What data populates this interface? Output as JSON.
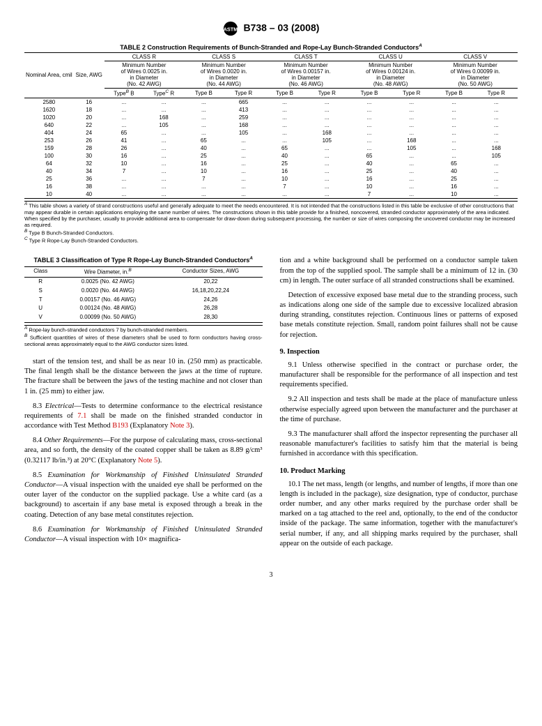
{
  "header": {
    "designation": "B738 – 03 (2008)"
  },
  "table2": {
    "title": "TABLE 2 Construction Requirements of Bunch-Stranded and Rope-Lay Bunch-Stranded Conductors",
    "sup": "A",
    "colgroup_labels": [
      "CLASS R",
      "CLASS S",
      "CLASS T",
      "CLASS U",
      "CLASS V"
    ],
    "left_headers": [
      "Nominal Area, cmil",
      "Size, AWG"
    ],
    "sub_header_lines": [
      [
        "Minimum Number",
        "of Wires 0.0025 in.",
        "in Diameter",
        "(No. 42 AWG)"
      ],
      [
        "Minimum Number",
        "of Wires 0.0020 in.",
        "in Diameter",
        "(No. 44 AWG)"
      ],
      [
        "Minimum Number",
        "of Wires 0.00157 in.",
        "in Diameter",
        "(No. 46 AWG)"
      ],
      [
        "Minimum Number",
        "of Wires 0.00124 in.",
        "in Diameter",
        "(No. 48 AWG)"
      ],
      [
        "Minimum Number",
        "of Wires 0.00099 in.",
        "in Diameter",
        "(No. 50 AWG)"
      ]
    ],
    "type_labels": {
      "b": "Type",
      "b_sup": "B",
      "b_suffix": " B",
      "r": "Type",
      "r_sup": "C",
      "r_suffix": " R",
      "plain_b": "Type B",
      "plain_r": "Type R"
    },
    "rows": [
      [
        "2580",
        "16",
        "...",
        "...",
        "...",
        "665",
        "...",
        "...",
        "...",
        "...",
        "...",
        "..."
      ],
      [
        "1620",
        "18",
        "...",
        "...",
        "...",
        "413",
        "...",
        "...",
        "...",
        "...",
        "...",
        "..."
      ],
      [
        "1020",
        "20",
        "...",
        "168",
        "...",
        "259",
        "...",
        "...",
        "...",
        "...",
        "...",
        "..."
      ],
      [
        "640",
        "22",
        "...",
        "105",
        "...",
        "168",
        "...",
        "...",
        "...",
        "...",
        "...",
        "..."
      ],
      [
        "404",
        "24",
        "65",
        "...",
        "...",
        "105",
        "...",
        "168",
        "...",
        "...",
        "...",
        "..."
      ],
      [
        "253",
        "26",
        "41",
        "...",
        "65",
        "...",
        "...",
        "105",
        "...",
        "168",
        "...",
        "..."
      ],
      [
        "159",
        "28",
        "26",
        "...",
        "40",
        "...",
        "65",
        "...",
        "...",
        "105",
        "...",
        "168"
      ],
      [
        "100",
        "30",
        "16",
        "...",
        "25",
        "...",
        "40",
        "...",
        "65",
        "...",
        "...",
        "105"
      ],
      [
        "64",
        "32",
        "10",
        "...",
        "16",
        "...",
        "25",
        "...",
        "40",
        "...",
        "65",
        "..."
      ],
      [
        "40",
        "34",
        "7",
        "...",
        "10",
        "...",
        "16",
        "...",
        "25",
        "...",
        "40",
        "..."
      ],
      [
        "25",
        "36",
        "...",
        "...",
        "7",
        "...",
        "10",
        "...",
        "16",
        "...",
        "25",
        "..."
      ],
      [
        "16",
        "38",
        "...",
        "...",
        "...",
        "...",
        "7",
        "...",
        "10",
        "...",
        "16",
        "..."
      ],
      [
        "10",
        "40",
        "...",
        "...",
        "...",
        "...",
        "...",
        "...",
        "7",
        "...",
        "10",
        "..."
      ]
    ],
    "notes": [
      {
        "sup": "A",
        "text": "This table shows a variety of strand constructions useful and generally adequate to meet the needs encountered. It is not intended that the constructions listed in this table be exclusive of other constructions that may appear durable in certain applications employing the same number of wires. The constructions shown in this table provide for a finished, noncovered, stranded conductor approximately of the area indicated. When specified by the purchaser, usually to provide additional area to compensate for draw-down during subsequent processing, the number or size of wires composing the uncovered conductor may be increased as required."
      },
      {
        "sup": "B",
        "text": "Type B Bunch-Stranded Conductors."
      },
      {
        "sup": "C",
        "text": "Type R Rope-Lay Bunch-Stranded Conductors."
      }
    ]
  },
  "table3": {
    "title": "TABLE 3 Classification of Type R Rope-Lay Bunch-Stranded Conductors",
    "sup": "A",
    "headers": [
      "Class",
      "Wire Diameter, in.",
      "B",
      "Conductor Sizes, AWG"
    ],
    "rows": [
      [
        "R",
        "0.0025 (No. 42 AWG)",
        "20,22"
      ],
      [
        "S",
        "0.0020 (No. 44 AWG)",
        "16,18,20,22,24"
      ],
      [
        "T",
        "0.00157 (No. 46 AWG)",
        "24,26"
      ],
      [
        "U",
        "0.00124 (No. 48 AWG)",
        "26,28"
      ],
      [
        "V",
        "0.00099 (No. 50 AWG)",
        "28,30"
      ]
    ],
    "notes": [
      {
        "sup": "A",
        "text": "Rope-lay bunch-stranded conductors 7 by bunch-stranded members."
      },
      {
        "sup": "B",
        "text": "Sufficient quantities of wires of these diameters shall be used to form conductors having cross-sectional areas approximately equal to the AWG conductor sizes listed."
      }
    ]
  },
  "left_col": {
    "p_tension": "start of the tension test, and shall be as near 10 in. (250 mm) as practicable. The final length shall be the distance between the jaws at the time of rupture. The fracture shall be between the jaws of the testing machine and not closer than 1 in. (25 mm) to either jaw.",
    "p83_prefix": "8.3 ",
    "p83_ital": "Electrical",
    "p83_rest": "—Tests to determine conformance to the electrical resistance requirements of ",
    "p83_link1": "7.1",
    "p83_mid": " shall be made on the finished stranded conductor in accordance with Test Method ",
    "p83_link2": "B193",
    "p83_mid2": " (Explanatory ",
    "p83_link3": "Note 3",
    "p83_end": ").",
    "p84_prefix": "8.4 ",
    "p84_ital": "Other Requirements",
    "p84_rest": "—For the purpose of calculating mass, cross-sectional area, and so forth, the density of the coated copper shall be taken as 8.89 g/cm³ (0.32117 lb/in.³) at 20°C (Explanatory ",
    "p84_link": "Note 5",
    "p84_end": ").",
    "p85_prefix": "8.5 ",
    "p85_ital": "Examination for Workmanship of Finished Uninsulated Stranded Conductor",
    "p85_rest": "—A visual inspection with the unaided eye shall be performed on the outer layer of the conductor on the supplied package. Use a white card (as a background) to ascertain if any base metal is exposed through a break in the coating. Detection of any base metal constitutes rejection.",
    "p86_prefix": "8.6 ",
    "p86_ital": "Examination for Workmanship of Finished Uninsulated Stranded Conductor",
    "p86_rest": "—A visual inspection with 10× magnifica-"
  },
  "right_col": {
    "p_cont": "tion and a white background shall be performed on a conductor sample taken from the top of the supplied spool. The sample shall be a minimum of 12 in. (30 cm) in length. The outer surface of all stranded constructions shall be examined.",
    "p_detect": "Detection of excessive exposed base metal due to the stranding process, such as indications along one side of the sample due to excessive localized abrasion during stranding, constitutes rejection. Continuous lines or patterns of exposed base metals constitute rejection. Small, random point failures shall not be cause for rejection.",
    "h9": "9. Inspection",
    "p91": "9.1 Unless otherwise specified in the contract or purchase order, the manufacturer shall be responsible for the performance of all inspection and test requirements specified.",
    "p92": "9.2 All inspection and tests shall be made at the place of manufacture unless otherwise especially agreed upon between the manufacturer and the purchaser at the time of purchase.",
    "p93": "9.3 The manufacturer shall afford the inspector representing the purchaser all reasonable manufacturer's facilities to satisfy him that the material is being furnished in accordance with this specification.",
    "h10": "10. Product Marking",
    "p101": "10.1 The net mass, length (or lengths, and number of lengths, if more than one length is included in the package), size designation, type of conductor, purchase order number, and any other marks required by the purchase order shall be marked on a tag attached to the reel and, optionally, to the end of the conductor inside of the package. The same information, together with the manufacturer's serial number, if any, and all shipping marks required by the purchaser, shall appear on the outside of each package."
  },
  "page_number": "3"
}
